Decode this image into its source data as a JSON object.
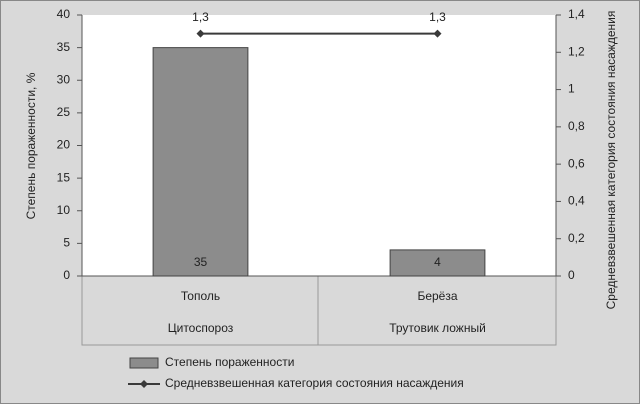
{
  "chart_data": {
    "type": "bar",
    "categories": [
      "Тополь",
      "Берёза"
    ],
    "category_groups": [
      "Цитоспороз",
      "Трутовик ложный"
    ],
    "y_label": "Степень пораженности, %",
    "y2_label": "Средневзвешенная категория состояния насаждения",
    "ylim": [
      0,
      40
    ],
    "yticks": [
      0,
      5,
      10,
      15,
      20,
      25,
      30,
      35,
      40
    ],
    "y2lim": [
      0,
      1.4
    ],
    "y2ticks": [
      0,
      {
        "value": 0.2,
        "label": "0,2"
      },
      {
        "value": 0.4,
        "label": "0,4"
      },
      {
        "value": 0.6,
        "label": "0,6"
      },
      {
        "value": 0.8,
        "label": "0,8"
      },
      1,
      {
        "value": 1.2,
        "label": "1,2"
      },
      {
        "value": 1.4,
        "label": "1,4"
      }
    ],
    "series": [
      {
        "name": "Степень пораженности",
        "type": "bar",
        "color": "#8c8c8c",
        "values": [
          35,
          4
        ]
      },
      {
        "name": "Средневзвешенная категория состояния насаждения",
        "type": "line",
        "axis": "y2",
        "color": "#3a3a3a",
        "values": [
          1.3,
          1.3
        ],
        "value_labels": [
          "1,3",
          "1,3"
        ]
      }
    ]
  }
}
